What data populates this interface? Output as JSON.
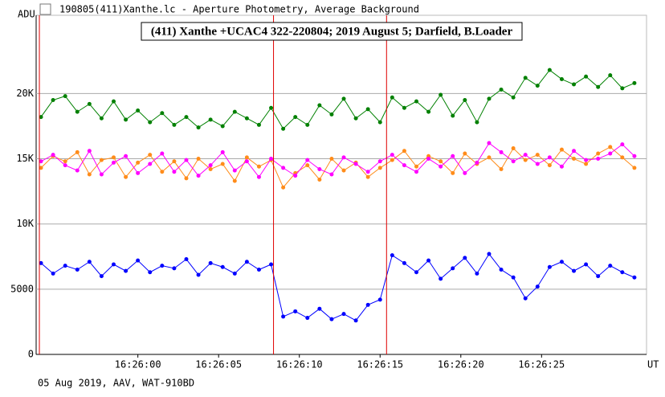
{
  "window_title": "190805(411)Xanthe.lc - Aperture Photometry, Average Background",
  "footer": "05 Aug 2019, AAV, WAT-910BD",
  "chart_data": {
    "type": "line",
    "title": "(411) Xanthe +UCAC4 322-220804; 2019 August 5; Darfield, B.Loader",
    "ylabel": "ADU",
    "xlabel": "UT",
    "x": [
      -6,
      -5.25,
      -4.5,
      -3.75,
      -3,
      -2.25,
      -1.5,
      -0.75,
      0,
      0.75,
      1.5,
      2.25,
      3,
      3.75,
      4.5,
      5.25,
      6,
      6.75,
      7.5,
      8.25,
      9,
      9.75,
      10.5,
      11.25,
      12,
      12.75,
      13.5,
      14.25,
      15,
      15.75,
      16.5,
      17.25,
      18,
      18.75,
      19.5,
      20.25,
      21,
      21.75,
      22.5,
      23.25,
      24,
      24.75,
      25.5,
      26.25,
      27,
      27.75,
      28.5,
      29.25,
      30,
      30.75
    ],
    "series": [
      {
        "color": "#008000",
        "values": [
          18200,
          19500,
          19800,
          18600,
          19200,
          18100,
          19400,
          18000,
          18700,
          17800,
          18500,
          17600,
          18200,
          17400,
          18000,
          17500,
          18600,
          18100,
          17600,
          18900,
          17300,
          18200,
          17600,
          19100,
          18400,
          19600,
          18100,
          18800,
          17800,
          19700,
          18900,
          19400,
          18600,
          19900,
          18300,
          19500,
          17800,
          19600,
          20300,
          19700,
          21200,
          20600,
          21800,
          21100,
          20700,
          21300,
          20500,
          21400,
          20400,
          20800
        ]
      },
      {
        "color": "#ff8c1a",
        "values": [
          14300,
          15200,
          14800,
          15500,
          13800,
          14900,
          15100,
          13600,
          14700,
          15300,
          14000,
          14800,
          13500,
          15000,
          14200,
          14600,
          13300,
          15100,
          14400,
          14900,
          12800,
          13900,
          14500,
          13400,
          15000,
          14100,
          14700,
          13600,
          14300,
          14900,
          15600,
          14400,
          15200,
          14800,
          13900,
          15400,
          14600,
          15100,
          14200,
          15800,
          14900,
          15300,
          14500,
          15700,
          15000,
          14600,
          15400,
          15900,
          15100,
          14300
        ]
      },
      {
        "color": "#ff00ff",
        "values": [
          14800,
          15300,
          14500,
          14100,
          15600,
          13800,
          14700,
          15200,
          13900,
          14600,
          15400,
          14000,
          14900,
          13700,
          14500,
          15500,
          14100,
          14800,
          13600,
          15000,
          14300,
          13700,
          14900,
          14200,
          13800,
          15100,
          14600,
          14000,
          14800,
          15300,
          14500,
          14000,
          15000,
          14400,
          15200,
          13900,
          14700,
          16200,
          15500,
          14800,
          15300,
          14600,
          15100,
          14400,
          15600,
          14900,
          15000,
          15400,
          16100,
          15200
        ]
      },
      {
        "color": "#0000ff",
        "values": [
          7000,
          6200,
          6800,
          6500,
          7100,
          6000,
          6900,
          6400,
          7200,
          6300,
          6800,
          6600,
          7300,
          6100,
          7000,
          6700,
          6200,
          7100,
          6500,
          6900,
          2900,
          3300,
          2800,
          3500,
          2700,
          3100,
          2600,
          3800,
          4200,
          7600,
          7000,
          6300,
          7200,
          5800,
          6600,
          7400,
          6200,
          7700,
          6500,
          5900,
          4300,
          5200,
          6700,
          7100,
          6400,
          6900,
          6000,
          6800,
          6300,
          5900
        ]
      }
    ],
    "markers": [
      -6.1,
      8.4,
      15.4
    ],
    "marker_color": "#e00000",
    "xlim": [
      -6.3,
      31.5
    ],
    "ylim": [
      0,
      26000
    ],
    "xticks": [
      {
        "value": 0,
        "label": "16:26:00"
      },
      {
        "value": 5,
        "label": "16:26:05"
      },
      {
        "value": 10,
        "label": "16:26:10"
      },
      {
        "value": 15,
        "label": "16:26:15"
      },
      {
        "value": 20,
        "label": "16:26:20"
      },
      {
        "value": 25,
        "label": "16:26:25"
      }
    ],
    "yticks": [
      0,
      5000,
      {
        "value": 10000,
        "label": "10K"
      },
      {
        "value": 15000,
        "label": "15K"
      },
      {
        "value": 20000,
        "label": "20K"
      }
    ],
    "grid": true
  }
}
